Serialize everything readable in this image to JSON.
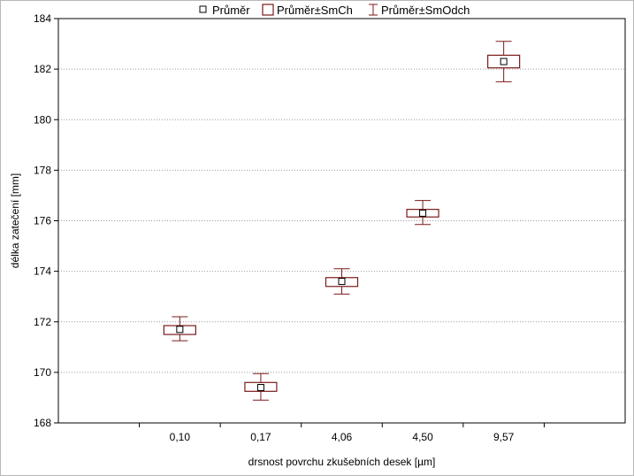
{
  "chart_data": {
    "type": "box",
    "xlabel": "drsnost povrchu zkušebních desek [µm]",
    "ylabel": "délka zatečení [mm]",
    "ylim": [
      168,
      184
    ],
    "yticks": [
      168,
      170,
      172,
      174,
      176,
      178,
      180,
      182,
      184
    ],
    "categories": [
      "0,10",
      "0,17",
      "4,06",
      "4,50",
      "9,57"
    ],
    "series": [
      {
        "name": "Průměr",
        "values": [
          171.7,
          169.4,
          173.6,
          176.3,
          182.3
        ]
      },
      {
        "name": "Průměr±SmCh",
        "lower": [
          171.5,
          169.25,
          173.4,
          176.15,
          182.05
        ],
        "upper": [
          171.85,
          169.6,
          173.75,
          176.45,
          182.55
        ]
      },
      {
        "name": "Průměr±SmOdch",
        "lower": [
          171.25,
          168.9,
          173.1,
          175.85,
          181.5
        ],
        "upper": [
          172.2,
          169.95,
          174.1,
          176.8,
          183.1
        ]
      }
    ],
    "grid": true,
    "legend_position": "top",
    "color": "#7a1a1a"
  }
}
